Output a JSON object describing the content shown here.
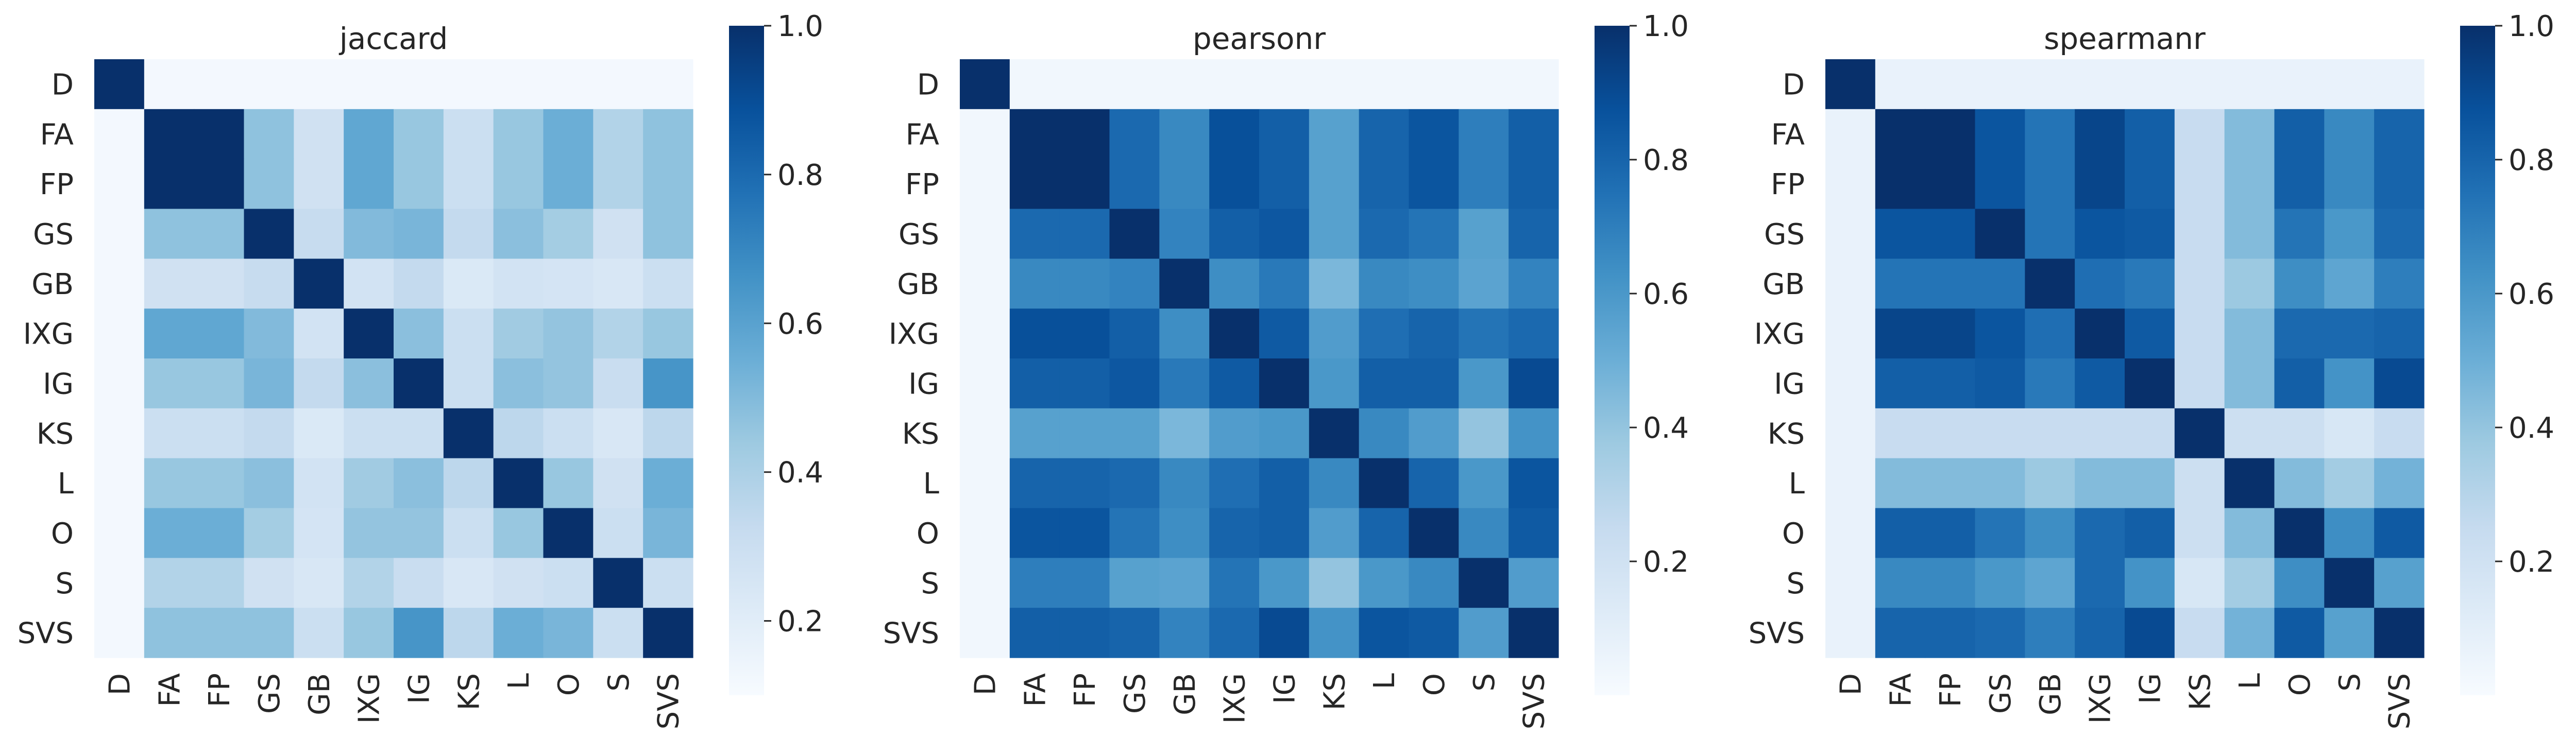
{
  "colormap": {
    "name": "Blues",
    "stops": [
      "#f7fbff",
      "#deebf7",
      "#c6dbef",
      "#9ecae1",
      "#6baed6",
      "#4292c6",
      "#2171b5",
      "#08519c",
      "#08306b"
    ]
  },
  "chart_data": [
    {
      "type": "heatmap",
      "title": "jaccard",
      "labels": [
        "D",
        "FA",
        "FP",
        "GS",
        "GB",
        "IXG",
        "IG",
        "KS",
        "L",
        "O",
        "S",
        "SVS"
      ],
      "vmin": 0.1,
      "vmax": 1.0,
      "colorbar_ticks": [
        "0.2",
        "0.4",
        "0.6",
        "0.8",
        "1.0"
      ],
      "matrix": [
        [
          1.0,
          0.12,
          0.12,
          0.12,
          0.12,
          0.12,
          0.12,
          0.12,
          0.12,
          0.12,
          0.12,
          0.12
        ],
        [
          0.12,
          1.0,
          1.0,
          0.47,
          0.28,
          0.58,
          0.45,
          0.3,
          0.45,
          0.55,
          0.38,
          0.47
        ],
        [
          0.12,
          1.0,
          1.0,
          0.47,
          0.28,
          0.58,
          0.45,
          0.3,
          0.45,
          0.55,
          0.38,
          0.47
        ],
        [
          0.12,
          0.47,
          0.47,
          1.0,
          0.32,
          0.5,
          0.52,
          0.33,
          0.48,
          0.42,
          0.28,
          0.47
        ],
        [
          0.12,
          0.28,
          0.28,
          0.32,
          1.0,
          0.27,
          0.33,
          0.23,
          0.27,
          0.26,
          0.24,
          0.3
        ],
        [
          0.12,
          0.58,
          0.58,
          0.5,
          0.27,
          1.0,
          0.48,
          0.3,
          0.43,
          0.46,
          0.38,
          0.45
        ],
        [
          0.12,
          0.45,
          0.45,
          0.52,
          0.33,
          0.48,
          1.0,
          0.3,
          0.48,
          0.46,
          0.31,
          0.65
        ],
        [
          0.12,
          0.3,
          0.3,
          0.33,
          0.23,
          0.3,
          0.3,
          1.0,
          0.35,
          0.3,
          0.24,
          0.35
        ],
        [
          0.12,
          0.45,
          0.45,
          0.48,
          0.27,
          0.43,
          0.48,
          0.35,
          1.0,
          0.45,
          0.28,
          0.55
        ],
        [
          0.12,
          0.55,
          0.55,
          0.42,
          0.26,
          0.46,
          0.46,
          0.3,
          0.45,
          1.0,
          0.3,
          0.52
        ],
        [
          0.12,
          0.38,
          0.38,
          0.28,
          0.24,
          0.38,
          0.31,
          0.24,
          0.28,
          0.3,
          1.0,
          0.3
        ],
        [
          0.12,
          0.47,
          0.47,
          0.47,
          0.3,
          0.45,
          0.65,
          0.35,
          0.55,
          0.52,
          0.3,
          1.0
        ]
      ]
    },
    {
      "type": "heatmap",
      "title": "pearsonr",
      "labels": [
        "D",
        "FA",
        "FP",
        "GS",
        "GB",
        "IXG",
        "IG",
        "KS",
        "L",
        "O",
        "S",
        "SVS"
      ],
      "vmin": 0.0,
      "vmax": 1.0,
      "colorbar_ticks": [
        "0.2",
        "0.4",
        "0.6",
        "0.8",
        "1.0"
      ],
      "matrix": [
        [
          1.0,
          0.03,
          0.03,
          0.03,
          0.03,
          0.03,
          0.03,
          0.03,
          0.03,
          0.03,
          0.03,
          0.03
        ],
        [
          0.03,
          1.0,
          1.0,
          0.78,
          0.66,
          0.88,
          0.82,
          0.56,
          0.8,
          0.86,
          0.7,
          0.82
        ],
        [
          0.03,
          1.0,
          1.0,
          0.78,
          0.66,
          0.88,
          0.82,
          0.56,
          0.8,
          0.86,
          0.7,
          0.82
        ],
        [
          0.03,
          0.78,
          0.78,
          1.0,
          0.68,
          0.82,
          0.85,
          0.56,
          0.78,
          0.74,
          0.56,
          0.8
        ],
        [
          0.03,
          0.66,
          0.66,
          0.68,
          1.0,
          0.64,
          0.72,
          0.46,
          0.66,
          0.64,
          0.55,
          0.68
        ],
        [
          0.03,
          0.88,
          0.88,
          0.82,
          0.64,
          1.0,
          0.84,
          0.58,
          0.76,
          0.8,
          0.74,
          0.78
        ],
        [
          0.03,
          0.82,
          0.82,
          0.85,
          0.72,
          0.84,
          1.0,
          0.6,
          0.82,
          0.82,
          0.6,
          0.9
        ],
        [
          0.03,
          0.56,
          0.56,
          0.56,
          0.46,
          0.58,
          0.6,
          1.0,
          0.66,
          0.58,
          0.4,
          0.62
        ],
        [
          0.03,
          0.8,
          0.8,
          0.78,
          0.66,
          0.76,
          0.82,
          0.66,
          1.0,
          0.8,
          0.6,
          0.86
        ],
        [
          0.03,
          0.86,
          0.86,
          0.74,
          0.64,
          0.8,
          0.82,
          0.58,
          0.8,
          1.0,
          0.66,
          0.84
        ],
        [
          0.03,
          0.7,
          0.7,
          0.56,
          0.55,
          0.74,
          0.6,
          0.4,
          0.6,
          0.66,
          1.0,
          0.58
        ],
        [
          0.03,
          0.82,
          0.82,
          0.8,
          0.68,
          0.78,
          0.9,
          0.62,
          0.86,
          0.84,
          0.58,
          1.0
        ]
      ]
    },
    {
      "type": "heatmap",
      "title": "spearmanr",
      "labels": [
        "D",
        "FA",
        "FP",
        "GS",
        "GB",
        "IXG",
        "IG",
        "KS",
        "L",
        "O",
        "S",
        "SVS"
      ],
      "vmin": 0.0,
      "vmax": 1.0,
      "colorbar_ticks": [
        "0.2",
        "0.4",
        "0.6",
        "0.8",
        "1.0"
      ],
      "matrix": [
        [
          1.0,
          0.07,
          0.07,
          0.07,
          0.07,
          0.07,
          0.07,
          0.07,
          0.07,
          0.07,
          0.07,
          0.07
        ],
        [
          0.07,
          1.0,
          1.0,
          0.86,
          0.74,
          0.92,
          0.82,
          0.24,
          0.44,
          0.82,
          0.66,
          0.8
        ],
        [
          0.07,
          1.0,
          1.0,
          0.86,
          0.74,
          0.92,
          0.82,
          0.24,
          0.44,
          0.82,
          0.66,
          0.8
        ],
        [
          0.07,
          0.86,
          0.86,
          1.0,
          0.74,
          0.86,
          0.84,
          0.24,
          0.44,
          0.74,
          0.6,
          0.78
        ],
        [
          0.07,
          0.74,
          0.74,
          0.74,
          1.0,
          0.76,
          0.72,
          0.24,
          0.38,
          0.64,
          0.54,
          0.7
        ],
        [
          0.07,
          0.92,
          0.92,
          0.86,
          0.76,
          1.0,
          0.84,
          0.24,
          0.44,
          0.78,
          0.78,
          0.8
        ],
        [
          0.07,
          0.82,
          0.82,
          0.84,
          0.72,
          0.84,
          1.0,
          0.24,
          0.44,
          0.82,
          0.62,
          0.9
        ],
        [
          0.07,
          0.24,
          0.24,
          0.24,
          0.24,
          0.24,
          0.24,
          1.0,
          0.22,
          0.22,
          0.16,
          0.24
        ],
        [
          0.07,
          0.44,
          0.44,
          0.44,
          0.38,
          0.44,
          0.44,
          0.22,
          1.0,
          0.44,
          0.36,
          0.48
        ],
        [
          0.07,
          0.82,
          0.82,
          0.74,
          0.64,
          0.78,
          0.82,
          0.22,
          0.44,
          1.0,
          0.64,
          0.84
        ],
        [
          0.07,
          0.66,
          0.66,
          0.6,
          0.54,
          0.78,
          0.62,
          0.16,
          0.36,
          0.64,
          1.0,
          0.56
        ],
        [
          0.07,
          0.8,
          0.8,
          0.78,
          0.7,
          0.8,
          0.9,
          0.24,
          0.48,
          0.84,
          0.56,
          1.0
        ]
      ]
    }
  ]
}
